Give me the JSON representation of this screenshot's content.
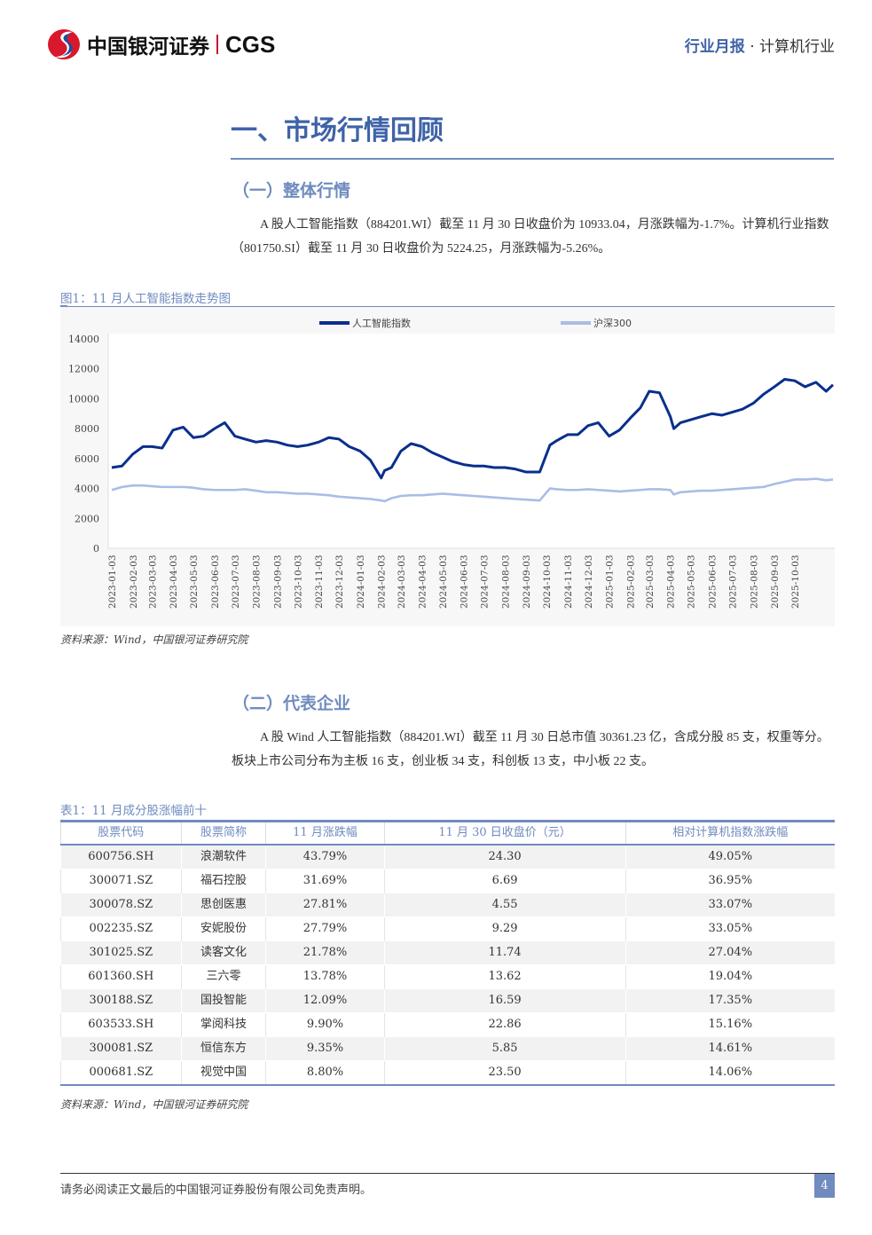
{
  "header": {
    "brand": "中国银河证券",
    "brand_en": "CGS",
    "report_type": "行业月报",
    "dot": "·",
    "industry": "计算机行业"
  },
  "section1": {
    "title": "一、市场行情回顾"
  },
  "sub1": {
    "title": "（一）整体行情",
    "paragraph": "A 股人工智能指数（884201.WI）截至 11 月 30 日收盘价为 10933.04，月涨跌幅为-1.7%。计算机行业指数（801750.SI）截至 11 月 30 日收盘价为 5224.25，月涨跌幅为-5.26%。"
  },
  "figure1": {
    "caption": "图1：11 月人工智能指数走势图",
    "source": "资料来源：Wind，中国银河证券研究院"
  },
  "chart_data": {
    "type": "line",
    "title": "",
    "ylim": [
      0,
      14000
    ],
    "yticks": [
      0,
      2000,
      4000,
      6000,
      8000,
      10000,
      12000,
      14000
    ],
    "xticks": [
      "2023-01-03",
      "2023-02-03",
      "2023-03-03",
      "2023-04-03",
      "2023-05-03",
      "2023-06-03",
      "2023-07-03",
      "2023-08-03",
      "2023-09-03",
      "2023-10-03",
      "2023-11-03",
      "2023-12-03",
      "2024-01-03",
      "2024-02-03",
      "2024-03-03",
      "2024-04-03",
      "2024-05-03",
      "2024-06-03",
      "2024-07-03",
      "2024-08-03",
      "2024-09-03",
      "2024-10-03",
      "2024-11-03",
      "2024-12-03",
      "2025-01-03",
      "2025-02-03",
      "2025-03-03",
      "2025-04-03",
      "2025-05-03",
      "2025-06-03",
      "2025-07-03",
      "2025-08-03",
      "2025-09-03",
      "2025-10-03"
    ],
    "legend_position": "top",
    "grid": false,
    "x": [
      "2023-01-03",
      "2023-01-18",
      "2023-02-03",
      "2023-02-18",
      "2023-03-03",
      "2023-03-18",
      "2023-04-03",
      "2023-04-18",
      "2023-05-03",
      "2023-05-18",
      "2023-06-03",
      "2023-06-18",
      "2023-07-03",
      "2023-07-18",
      "2023-08-03",
      "2023-08-18",
      "2023-09-03",
      "2023-09-18",
      "2023-10-03",
      "2023-10-18",
      "2023-11-03",
      "2023-11-18",
      "2023-12-03",
      "2023-12-18",
      "2024-01-03",
      "2024-01-18",
      "2024-02-03",
      "2024-02-08",
      "2024-02-18",
      "2024-03-03",
      "2024-03-18",
      "2024-04-03",
      "2024-04-18",
      "2024-05-03",
      "2024-05-18",
      "2024-06-03",
      "2024-06-18",
      "2024-07-03",
      "2024-07-18",
      "2024-08-03",
      "2024-08-18",
      "2024-09-03",
      "2024-09-23",
      "2024-10-08",
      "2024-10-18",
      "2024-11-03",
      "2024-11-18",
      "2024-12-03",
      "2024-12-18",
      "2025-01-03",
      "2025-01-18",
      "2025-02-03",
      "2025-02-18",
      "2025-03-03",
      "2025-03-18",
      "2025-04-03",
      "2025-04-08",
      "2025-04-18",
      "2025-05-03",
      "2025-05-18",
      "2025-06-03",
      "2025-06-18",
      "2025-07-03",
      "2025-07-18",
      "2025-08-03",
      "2025-08-18",
      "2025-09-03",
      "2025-09-18",
      "2025-10-03",
      "2025-10-18",
      "2025-11-03",
      "2025-11-18",
      "2025-11-28"
    ],
    "series": [
      {
        "name": "人工智能指数",
        "color": "#0a2f8c",
        "values": [
          5400,
          5500,
          6300,
          6800,
          6800,
          6700,
          7900,
          8100,
          7400,
          7500,
          8000,
          8400,
          7500,
          7300,
          7100,
          7200,
          7100,
          6900,
          6800,
          6900,
          7100,
          7400,
          7300,
          6800,
          6500,
          5900,
          4700,
          5200,
          5400,
          6500,
          7000,
          6800,
          6400,
          6100,
          5800,
          5600,
          5500,
          5500,
          5400,
          5400,
          5300,
          5100,
          5100,
          6900,
          7200,
          7600,
          7600,
          8200,
          8400,
          7500,
          7900,
          8700,
          9400,
          10500,
          10400,
          8800,
          8000,
          8400,
          8600,
          8800,
          9000,
          8900,
          9100,
          9300,
          9700,
          10300,
          10800,
          11300,
          11200,
          10800,
          11100,
          10500,
          10933
        ]
      },
      {
        "name": "沪深300",
        "color": "#a9bde6",
        "values": [
          3900,
          4100,
          4200,
          4200,
          4150,
          4100,
          4100,
          4100,
          4050,
          3950,
          3900,
          3900,
          3900,
          3950,
          3850,
          3750,
          3750,
          3700,
          3650,
          3650,
          3600,
          3550,
          3450,
          3400,
          3350,
          3300,
          3200,
          3150,
          3350,
          3500,
          3550,
          3550,
          3600,
          3650,
          3600,
          3550,
          3500,
          3450,
          3400,
          3350,
          3300,
          3250,
          3200,
          4000,
          3950,
          3900,
          3900,
          3950,
          3900,
          3850,
          3800,
          3850,
          3900,
          3950,
          3950,
          3900,
          3600,
          3750,
          3800,
          3850,
          3850,
          3900,
          3950,
          4000,
          4050,
          4100,
          4300,
          4450,
          4600,
          4600,
          4650,
          4550,
          4600
        ]
      }
    ]
  },
  "sub2": {
    "title": "（二）代表企业",
    "paragraph": "A 股 Wind 人工智能指数（884201.WI）截至 11 月 30 日总市值 30361.23 亿，含成分股 85 支，权重等分。板块上市公司分布为主板 16 支，创业板 34 支，科创板 13 支，中小板 22 支。"
  },
  "table1": {
    "caption": "表1：11 月成分股涨幅前十",
    "source": "资料来源：Wind，中国银河证券研究院",
    "headers": [
      "股票代码",
      "股票简称",
      "11 月涨跌幅",
      "11 月 30 日收盘价（元）",
      "相对计算机指数涨跌幅"
    ],
    "rows": [
      [
        "600756.SH",
        "浪潮软件",
        "43.79%",
        "24.30",
        "49.05%"
      ],
      [
        "300071.SZ",
        "福石控股",
        "31.69%",
        "6.69",
        "36.95%"
      ],
      [
        "300078.SZ",
        "思创医惠",
        "27.81%",
        "4.55",
        "33.07%"
      ],
      [
        "002235.SZ",
        "安妮股份",
        "27.79%",
        "9.29",
        "33.05%"
      ],
      [
        "301025.SZ",
        "读客文化",
        "21.78%",
        "11.74",
        "27.04%"
      ],
      [
        "601360.SH",
        "三六零",
        "13.78%",
        "13.62",
        "19.04%"
      ],
      [
        "300188.SZ",
        "国投智能",
        "12.09%",
        "16.59",
        "17.35%"
      ],
      [
        "603533.SH",
        "掌阅科技",
        "9.90%",
        "22.86",
        "15.16%"
      ],
      [
        "300081.SZ",
        "恒信东方",
        "9.35%",
        "5.85",
        "14.61%"
      ],
      [
        "000681.SZ",
        "视觉中国",
        "8.80%",
        "23.50",
        "14.06%"
      ]
    ]
  },
  "footer": {
    "disclaimer": "请务必阅读正文最后的中国银河证券股份有限公司免责声明。",
    "page": "4"
  }
}
